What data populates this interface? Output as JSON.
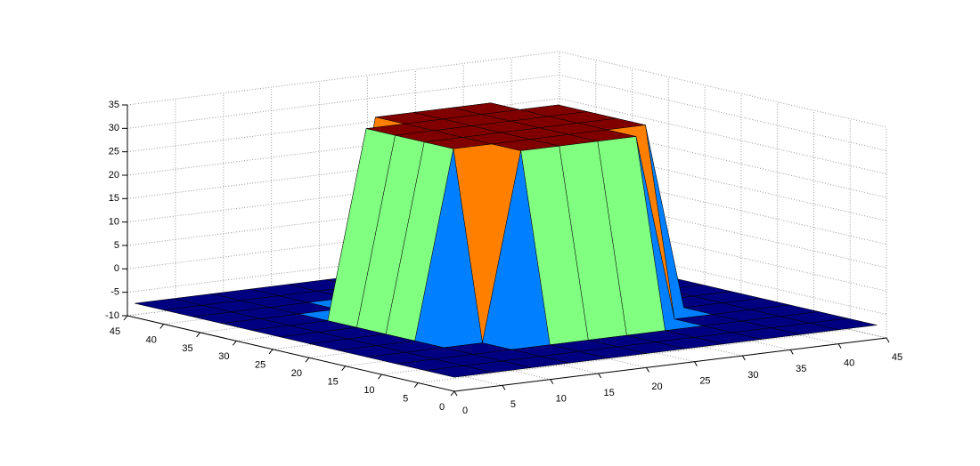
{
  "chart_data": {
    "type": "surface",
    "x": [
      0,
      4,
      8,
      12,
      16,
      20,
      24,
      28,
      32,
      36,
      40,
      44
    ],
    "y": [
      0,
      4,
      8,
      12,
      16,
      20,
      24,
      28,
      32,
      36,
      40,
      44
    ],
    "z": [
      [
        -7,
        -7,
        -7,
        -7,
        -7,
        -7,
        -7,
        -7,
        -7,
        -7,
        -7,
        -7
      ],
      [
        -7,
        -7,
        -7,
        -7,
        -7,
        -7,
        -7,
        -7,
        -7,
        -7,
        -7,
        -7
      ],
      [
        -7,
        -7,
        -7,
        -7,
        -7,
        -7,
        -7,
        -7,
        -7,
        -7,
        -7,
        -7
      ],
      [
        -7,
        -7,
        -7,
        -7,
        33,
        33,
        33,
        33,
        -7,
        -7,
        -7,
        -7
      ],
      [
        -7,
        -7,
        -7,
        33,
        33,
        33,
        33,
        33,
        33,
        -7,
        -7,
        -7
      ],
      [
        -7,
        -7,
        -7,
        33,
        33,
        33,
        33,
        33,
        33,
        -7,
        -7,
        -7
      ],
      [
        -7,
        -7,
        -7,
        33,
        33,
        33,
        33,
        33,
        33,
        -7,
        -7,
        -7
      ],
      [
        -7,
        -7,
        -7,
        33,
        33,
        33,
        33,
        33,
        33,
        -7,
        -7,
        -7
      ],
      [
        -7,
        -7,
        -7,
        -7,
        33,
        33,
        33,
        33,
        -7,
        -7,
        -7,
        -7
      ],
      [
        -7,
        -7,
        -7,
        -7,
        -7,
        -7,
        -7,
        -7,
        -7,
        -7,
        -7,
        -7
      ],
      [
        -7,
        -7,
        -7,
        -7,
        -7,
        -7,
        -7,
        -7,
        -7,
        -7,
        -7,
        -7
      ],
      [
        -7,
        -7,
        -7,
        -7,
        -7,
        -7,
        -7,
        -7,
        -7,
        -7,
        -7,
        -7
      ]
    ],
    "xlim": [
      0,
      45
    ],
    "ylim": [
      0,
      45
    ],
    "zlim": [
      -10,
      35
    ],
    "xticks": [
      0,
      5,
      10,
      15,
      20,
      25,
      30,
      35,
      40,
      45
    ],
    "yticks": [
      0,
      5,
      10,
      15,
      20,
      25,
      30,
      35,
      40,
      45
    ],
    "zticks": [
      -10,
      -5,
      0,
      5,
      10,
      15,
      20,
      25,
      30,
      35
    ],
    "grid": true,
    "colormap": "jet",
    "edgecolor": "#000000"
  }
}
